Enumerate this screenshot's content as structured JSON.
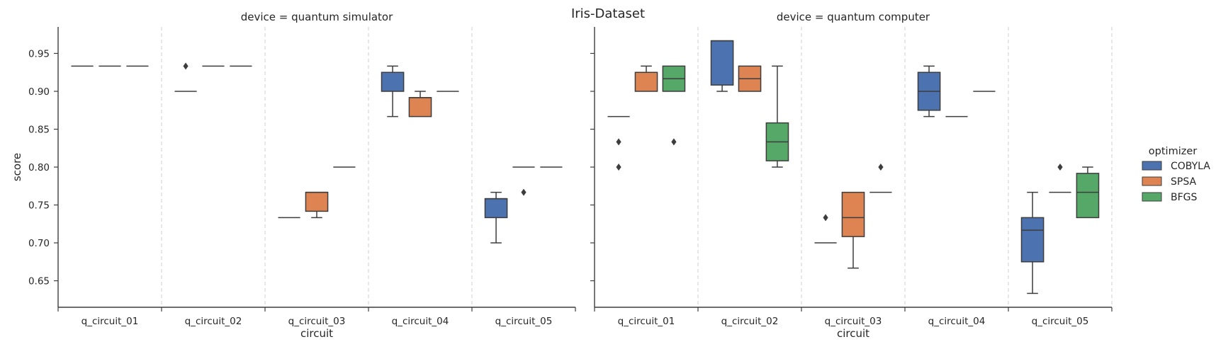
{
  "title": "Iris-Dataset",
  "chart_data": {
    "type": "box",
    "title": "Iris-Dataset",
    "xlabel": "circuit",
    "ylabel": "score",
    "ylim": [
      0.615,
      0.985
    ],
    "yticks": [
      0.65,
      0.7,
      0.75,
      0.8,
      0.85,
      0.9,
      0.95
    ],
    "categories": [
      "q_circuit_01",
      "q_circuit_02",
      "q_circuit_03",
      "q_circuit_04",
      "q_circuit_05"
    ],
    "hue_order": [
      "COBYLA",
      "SPSA",
      "BFGS"
    ],
    "colors": {
      "COBYLA": "#4c72b0",
      "SPSA": "#dd8452",
      "BFGS": "#55a868",
      "line": "#3d3d3d",
      "separator": "#cfcfcf"
    },
    "legend": {
      "title": "optimizer",
      "entries": [
        "COBYLA",
        "SPSA",
        "BFGS"
      ],
      "placement": "right"
    },
    "facets": [
      {
        "title": "device = quantum simulator",
        "boxes": [
          {
            "category": "q_circuit_01",
            "optimizer": "COBYLA",
            "whislo": 0.9333,
            "q1": 0.9333,
            "med": 0.9333,
            "q3": 0.9333,
            "whishi": 0.9333,
            "fliers": []
          },
          {
            "category": "q_circuit_01",
            "optimizer": "SPSA",
            "whislo": 0.9333,
            "q1": 0.9333,
            "med": 0.9333,
            "q3": 0.9333,
            "whishi": 0.9333,
            "fliers": []
          },
          {
            "category": "q_circuit_01",
            "optimizer": "BFGS",
            "whislo": 0.9333,
            "q1": 0.9333,
            "med": 0.9333,
            "q3": 0.9333,
            "whishi": 0.9333,
            "fliers": []
          },
          {
            "category": "q_circuit_02",
            "optimizer": "COBYLA",
            "whislo": 0.9,
            "q1": 0.9,
            "med": 0.9,
            "q3": 0.9,
            "whishi": 0.9,
            "fliers": []
          },
          {
            "category": "q_circuit_02",
            "optimizer": "SPSA",
            "whislo": 0.9333,
            "q1": 0.9333,
            "med": 0.9333,
            "q3": 0.9333,
            "whishi": 0.9333,
            "fliers": []
          },
          {
            "category": "q_circuit_02",
            "optimizer": "BFGS",
            "whislo": 0.9333,
            "q1": 0.9333,
            "med": 0.9333,
            "q3": 0.9333,
            "whishi": 0.9333,
            "fliers": []
          },
          {
            "category": "q_circuit_03",
            "optimizer": "COBYLA",
            "whislo": 0.7333,
            "q1": 0.7333,
            "med": 0.7333,
            "q3": 0.7333,
            "whishi": 0.7333,
            "fliers": []
          },
          {
            "category": "q_circuit_03",
            "optimizer": "SPSA",
            "whislo": 0.7333,
            "q1": 0.7417,
            "med": 0.7667,
            "q3": 0.7667,
            "whishi": 0.7667,
            "fliers": []
          },
          {
            "category": "q_circuit_03",
            "optimizer": "BFGS",
            "whislo": 0.8,
            "q1": 0.8,
            "med": 0.8,
            "q3": 0.8,
            "whishi": 0.8,
            "fliers": []
          },
          {
            "category": "q_circuit_04",
            "optimizer": "COBYLA",
            "whislo": 0.8667,
            "q1": 0.9,
            "med": 0.925,
            "q3": 0.925,
            "whishi": 0.9333,
            "fliers": []
          },
          {
            "category": "q_circuit_04",
            "optimizer": "SPSA",
            "whislo": 0.8667,
            "q1": 0.8667,
            "med": 0.8917,
            "q3": 0.8917,
            "whishi": 0.9,
            "fliers": []
          },
          {
            "category": "q_circuit_04",
            "optimizer": "BFGS",
            "whislo": 0.9,
            "q1": 0.9,
            "med": 0.9,
            "q3": 0.9,
            "whishi": 0.9,
            "fliers": []
          },
          {
            "category": "q_circuit_05",
            "optimizer": "COBYLA",
            "whislo": 0.7,
            "q1": 0.7333,
            "med": 0.7583,
            "q3": 0.7583,
            "whishi": 0.7667,
            "fliers": []
          },
          {
            "category": "q_circuit_05",
            "optimizer": "SPSA",
            "whislo": 0.8,
            "q1": 0.8,
            "med": 0.8,
            "q3": 0.8,
            "whishi": 0.8,
            "fliers": [
              0.7667
            ]
          },
          {
            "category": "q_circuit_05",
            "optimizer": "BFGS",
            "whislo": 0.8,
            "q1": 0.8,
            "med": 0.8,
            "q3": 0.8,
            "whishi": 0.8,
            "fliers": []
          }
        ],
        "extra_fliers": [
          {
            "category": "q_circuit_02",
            "optimizer": "COBYLA",
            "value": 0.9333
          }
        ]
      },
      {
        "title": "device = quantum computer",
        "boxes": [
          {
            "category": "q_circuit_01",
            "optimizer": "COBYLA",
            "whislo": 0.8667,
            "q1": 0.8667,
            "med": 0.8667,
            "q3": 0.8667,
            "whishi": 0.8667,
            "fliers": [
              0.8333,
              0.8
            ]
          },
          {
            "category": "q_circuit_01",
            "optimizer": "SPSA",
            "whislo": 0.9,
            "q1": 0.9,
            "med": 0.925,
            "q3": 0.925,
            "whishi": 0.9333,
            "fliers": []
          },
          {
            "category": "q_circuit_01",
            "optimizer": "BFGS",
            "whislo": 0.9,
            "q1": 0.9,
            "med": 0.9167,
            "q3": 0.9333,
            "whishi": 0.9333,
            "fliers": [
              0.8333
            ]
          },
          {
            "category": "q_circuit_02",
            "optimizer": "COBYLA",
            "whislo": 0.9,
            "q1": 0.9083,
            "med": 0.9667,
            "q3": 0.9667,
            "whishi": 0.9667,
            "fliers": []
          },
          {
            "category": "q_circuit_02",
            "optimizer": "SPSA",
            "whislo": 0.9,
            "q1": 0.9,
            "med": 0.9167,
            "q3": 0.9333,
            "whishi": 0.9333,
            "fliers": []
          },
          {
            "category": "q_circuit_02",
            "optimizer": "BFGS",
            "whislo": 0.8,
            "q1": 0.8083,
            "med": 0.8333,
            "q3": 0.8583,
            "whishi": 0.9333,
            "fliers": []
          },
          {
            "category": "q_circuit_03",
            "optimizer": "COBYLA",
            "whislo": 0.7,
            "q1": 0.7,
            "med": 0.7,
            "q3": 0.7,
            "whishi": 0.7,
            "fliers": [
              0.7333
            ]
          },
          {
            "category": "q_circuit_03",
            "optimizer": "SPSA",
            "whislo": 0.6667,
            "q1": 0.7083,
            "med": 0.7333,
            "q3": 0.7667,
            "whishi": 0.7667,
            "fliers": []
          },
          {
            "category": "q_circuit_03",
            "optimizer": "BFGS",
            "whislo": 0.7667,
            "q1": 0.7667,
            "med": 0.7667,
            "q3": 0.7667,
            "whishi": 0.7667,
            "fliers": [
              0.8
            ]
          },
          {
            "category": "q_circuit_04",
            "optimizer": "COBYLA",
            "whislo": 0.8667,
            "q1": 0.875,
            "med": 0.9,
            "q3": 0.925,
            "whishi": 0.9333,
            "fliers": []
          },
          {
            "category": "q_circuit_04",
            "optimizer": "SPSA",
            "whislo": 0.8667,
            "q1": 0.8667,
            "med": 0.8667,
            "q3": 0.8667,
            "whishi": 0.8667,
            "fliers": []
          },
          {
            "category": "q_circuit_04",
            "optimizer": "BFGS",
            "whislo": 0.9,
            "q1": 0.9,
            "med": 0.9,
            "q3": 0.9,
            "whishi": 0.9,
            "fliers": []
          },
          {
            "category": "q_circuit_05",
            "optimizer": "COBYLA",
            "whislo": 0.6333,
            "q1": 0.675,
            "med": 0.7167,
            "q3": 0.7333,
            "whishi": 0.7667,
            "fliers": []
          },
          {
            "category": "q_circuit_05",
            "optimizer": "SPSA",
            "whislo": 0.7667,
            "q1": 0.7667,
            "med": 0.7667,
            "q3": 0.7667,
            "whishi": 0.7667,
            "fliers": [
              0.8
            ]
          },
          {
            "category": "q_circuit_05",
            "optimizer": "BFGS",
            "whislo": 0.7333,
            "q1": 0.7333,
            "med": 0.7667,
            "q3": 0.7917,
            "whishi": 0.8,
            "fliers": []
          }
        ],
        "extra_fliers": []
      }
    ]
  }
}
